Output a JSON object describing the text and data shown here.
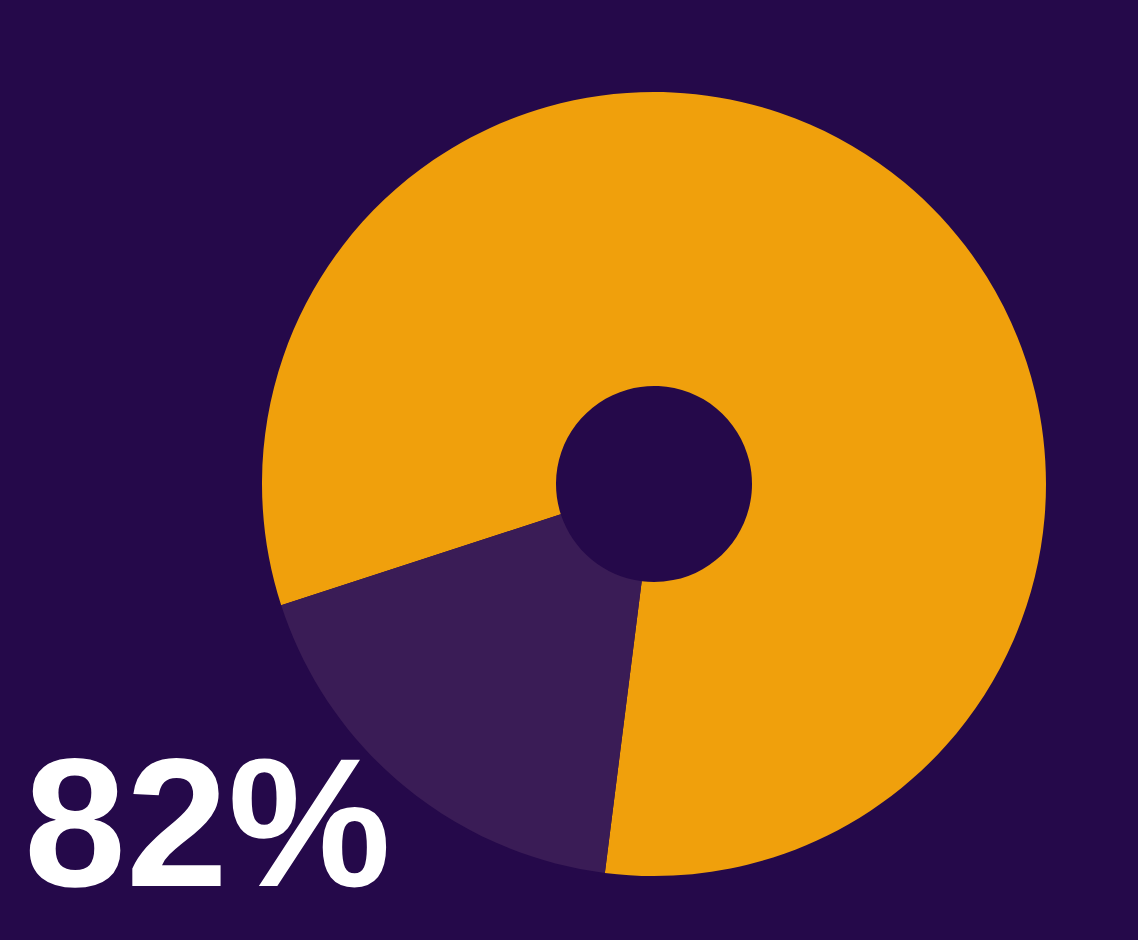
{
  "chart_data": {
    "type": "donut",
    "categories": [
      null,
      null
    ],
    "values": [
      82,
      18
    ],
    "colors": [
      "#f0a00c",
      "#3a1c56"
    ],
    "annotations": [
      "82%"
    ]
  }
}
